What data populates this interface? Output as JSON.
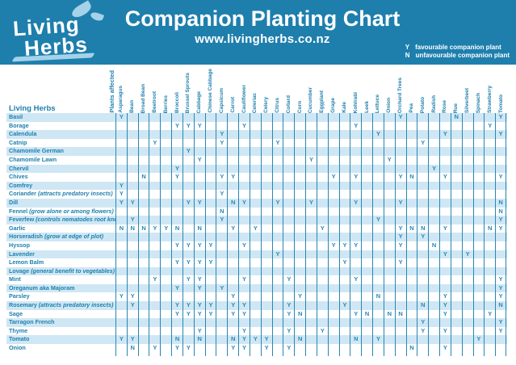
{
  "header": {
    "logo": {
      "line1": "Living",
      "line2": "Herbs"
    },
    "website": "www.livingherbs.co.nz",
    "legend": [
      {
        "key": "Y",
        "label": "favourable companion plant"
      },
      {
        "key": "N",
        "label": "unfavourable companion plant"
      }
    ]
  },
  "colors": {
    "blue": "#1e7fad",
    "light_blue": "#a5d2e8",
    "row_stripe": "#cfe7f4",
    "cell_text": "#2589ba"
  },
  "chart_data": {
    "type": "table",
    "title": "Companion Planting Chart",
    "corner_label": "Living Herbs",
    "columns_group_label": "Plants affected",
    "legend": {
      "Y": "favourable companion plant",
      "N": "unfavourable companion plant"
    },
    "columns": [
      "Asparagus",
      "Bean",
      "Broad Bean",
      "Beetroot",
      "Berries",
      "Broccoli",
      "Brussel Sprouts",
      "Cabbage",
      "Chinese Cabbage",
      "Capsicum",
      "Carrot",
      "Cauliflower",
      "Celeriac",
      "Celery",
      "Citrus",
      "Collard",
      "Corn",
      "Cucumber",
      "Eggplant",
      "Grape",
      "Kale",
      "Kohlrabi",
      "Leek",
      "Lettuce",
      "Onion",
      "Orchard Trees",
      "Pea",
      "Potato",
      "Radish",
      "Rose",
      "Rue",
      "Silverbeet",
      "Spinach",
      "Strawberry",
      "Tomato"
    ],
    "rows": [
      {
        "label": "Basil",
        "cells": {
          "Asparagus": "Y",
          "Orchard Trees": "Y",
          "Rue": "N",
          "Tomato": "Y"
        }
      },
      {
        "label": "Borage",
        "cells": {
          "Broccoli": "Y",
          "Brussel Sprouts": "Y",
          "Cabbage": "Y",
          "Cauliflower": "Y",
          "Kohlrabi": "Y",
          "Strawberry": "Y"
        }
      },
      {
        "label": "Calendula",
        "cells": {
          "Capsicum": "Y",
          "Lettuce": "Y",
          "Rose": "Y",
          "Tomato": "Y"
        }
      },
      {
        "label": "Catnip",
        "cells": {
          "Beetroot": "Y",
          "Capsicum": "Y",
          "Citrus": "Y",
          "Potato": "Y"
        }
      },
      {
        "label": "Chamomile German",
        "cells": {
          "Brussel Sprouts": "Y"
        }
      },
      {
        "label": "Chamomile Lawn",
        "cells": {
          "Cabbage": "Y",
          "Cucumber": "Y",
          "Onion": "Y"
        }
      },
      {
        "label": "Chervil",
        "cells": {
          "Broccoli": "Y",
          "Radish": "Y"
        }
      },
      {
        "label": "Chives",
        "cells": {
          "Broad Bean": "N",
          "Broccoli": "Y",
          "Capsicum": "Y",
          "Carrot": "Y",
          "Grape": "Y",
          "Kohlrabi": "Y",
          "Orchard Trees": "Y",
          "Pea": "N",
          "Rose": "Y",
          "Tomato": "Y"
        }
      },
      {
        "label": "Comfrey",
        "cells": {
          "Asparagus": "Y"
        }
      },
      {
        "label": "Coriander",
        "note": "(attracts predatory insects)",
        "cells": {
          "Asparagus": "Y",
          "Capsicum": "Y"
        }
      },
      {
        "label": "Dill",
        "cells": {
          "Asparagus": "Y",
          "Bean": "Y",
          "Brussel Sprouts": "Y",
          "Cabbage": "Y",
          "Carrot": "N",
          "Cauliflower": "Y",
          "Citrus": "Y",
          "Cucumber": "Y",
          "Kohlrabi": "Y",
          "Orchard Trees": "Y",
          "Tomato": "N"
        }
      },
      {
        "label": "Fennel",
        "note": "(grow alone or among flowers)",
        "cells": {
          "Capsicum": "N",
          "Tomato": "N"
        }
      },
      {
        "label": "Feverfew",
        "note": "(controls nematodes root knot)",
        "cells": {
          "Bean": "Y",
          "Capsicum": "Y",
          "Lettuce": "Y",
          "Tomato": "Y"
        }
      },
      {
        "label": "Garlic",
        "cells": {
          "Asparagus": "N",
          "Bean": "N",
          "Broad Bean": "N",
          "Beetroot": "Y",
          "Berries": "Y",
          "Broccoli": "N",
          "Cabbage": "N",
          "Carrot": "Y",
          "Celeriac": "Y",
          "Eggplant": "Y",
          "Orchard Trees": "Y",
          "Pea": "N",
          "Potato": "N",
          "Rose": "Y",
          "Strawberry": "N",
          "Tomato": "Y"
        }
      },
      {
        "label": "Horseradish",
        "note": "(grow at edge of plot)",
        "cells": {
          "Orchard Trees": "Y",
          "Potato": "Y"
        }
      },
      {
        "label": "Hyssop",
        "cells": {
          "Broccoli": "Y",
          "Brussel Sprouts": "Y",
          "Cabbage": "Y",
          "Chinese Cabbage": "Y",
          "Cauliflower": "Y",
          "Grape": "Y",
          "Kale": "Y",
          "Kohlrabi": "Y",
          "Orchard Trees": "Y",
          "Radish": "N"
        }
      },
      {
        "label": "Lavender",
        "cells": {
          "Citrus": "Y",
          "Rose": "Y",
          "Silverbeet": "Y"
        }
      },
      {
        "label": "Lemon Balm",
        "cells": {
          "Broccoli": "Y",
          "Brussel Sprouts": "Y",
          "Cabbage": "Y",
          "Chinese Cabbage": "Y",
          "Kale": "Y",
          "Orchard Trees": "Y"
        }
      },
      {
        "label": "Lovage",
        "note": "(general benefit to vegetables)",
        "cells": {}
      },
      {
        "label": "Mint",
        "cells": {
          "Beetroot": "Y",
          "Brussel Sprouts": "Y",
          "Cabbage": "Y",
          "Cauliflower": "Y",
          "Collard": "Y",
          "Kohlrabi": "Y",
          "Tomato": "Y"
        }
      },
      {
        "label": "Oreganum aka Majoram",
        "cells": {
          "Broccoli": "Y",
          "Cabbage": "Y",
          "Capsicum": "Y",
          "Tomato": "Y"
        }
      },
      {
        "label": "Parsley",
        "cells": {
          "Asparagus": "Y",
          "Bean": "Y",
          "Carrot": "Y",
          "Corn": "Y",
          "Lettuce": "N",
          "Rose": "Y",
          "Tomato": "Y"
        }
      },
      {
        "label": "Rosemary",
        "note": "(attracts predatory insects)",
        "cells": {
          "Bean": "Y",
          "Broccoli": "Y",
          "Brussel Sprouts": "Y",
          "Cabbage": "Y",
          "Chinese Cabbage": "Y",
          "Carrot": "Y",
          "Cauliflower": "Y",
          "Collard": "Y",
          "Kale": "Y",
          "Potato": "N",
          "Rose": "Y",
          "Tomato": "N"
        }
      },
      {
        "label": "Sage",
        "cells": {
          "Broccoli": "Y",
          "Brussel Sprouts": "Y",
          "Cabbage": "Y",
          "Chinese Cabbage": "Y",
          "Carrot": "Y",
          "Cauliflower": "Y",
          "Collard": "Y",
          "Corn": "N",
          "Kohlrabi": "Y",
          "Leek": "N",
          "Onion": "N",
          "Orchard Trees": "N",
          "Rose": "Y",
          "Strawberry": "Y"
        }
      },
      {
        "label": "Tarragon French",
        "cells": {
          "Potato": "Y",
          "Tomato": "Y"
        }
      },
      {
        "label": "Thyme",
        "cells": {
          "Cabbage": "Y",
          "Cauliflower": "Y",
          "Collard": "Y",
          "Eggplant": "Y",
          "Potato": "Y",
          "Rose": "Y",
          "Tomato": "Y"
        }
      },
      {
        "label": "Tomato",
        "cells": {
          "Asparagus": "Y",
          "Bean": "Y",
          "Broccoli": "N",
          "Cabbage": "N",
          "Carrot": "N",
          "Cauliflower": "Y",
          "Celeriac": "Y",
          "Celery": "Y",
          "Corn": "N",
          "Kohlrabi": "N",
          "Lettuce": "Y",
          "Spinach": "Y"
        }
      },
      {
        "label": "Onion",
        "cells": {
          "Bean": "N",
          "Beetroot": "Y",
          "Broccoli": "Y",
          "Brussel Sprouts": "Y",
          "Carrot": "Y",
          "Cauliflower": "Y",
          "Celery": "Y",
          "Collard": "Y",
          "Pea": "N",
          "Rose": "Y"
        }
      }
    ]
  }
}
